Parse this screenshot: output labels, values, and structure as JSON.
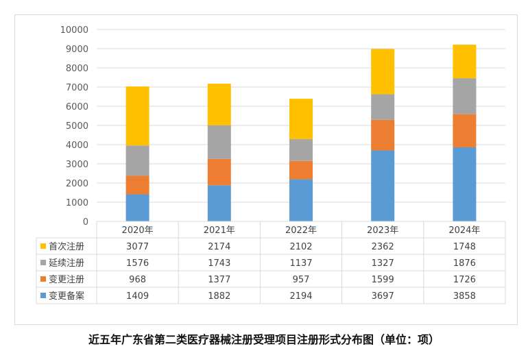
{
  "chart_data": {
    "type": "bar",
    "stacked": true,
    "title": "近五年广东省第二类医疗器械注册受理项目注册形式分布图（单位：项）",
    "categories": [
      "2020年",
      "2021年",
      "2022年",
      "2023年",
      "2024年"
    ],
    "series": [
      {
        "name": "变更备案",
        "color": "#5b9bd5",
        "values": [
          1409,
          1882,
          2194,
          3697,
          3858
        ]
      },
      {
        "name": "变更注册",
        "color": "#ed7d31",
        "values": [
          968,
          1377,
          957,
          1599,
          1726
        ]
      },
      {
        "name": "延续注册",
        "color": "#a5a5a5",
        "values": [
          1576,
          1743,
          1137,
          1327,
          1876
        ]
      },
      {
        "name": "首次注册",
        "color": "#ffc000",
        "values": [
          3077,
          2174,
          2102,
          2362,
          1748
        ]
      }
    ],
    "table_row_order": [
      "首次注册",
      "延续注册",
      "变更注册",
      "变更备案"
    ],
    "yticks": [
      "0",
      "1000",
      "2000",
      "3000",
      "4000",
      "5000",
      "6000",
      "7000",
      "8000",
      "9000",
      "10000"
    ],
    "ylim": [
      0,
      10000
    ],
    "grid": true,
    "data_table": true
  }
}
